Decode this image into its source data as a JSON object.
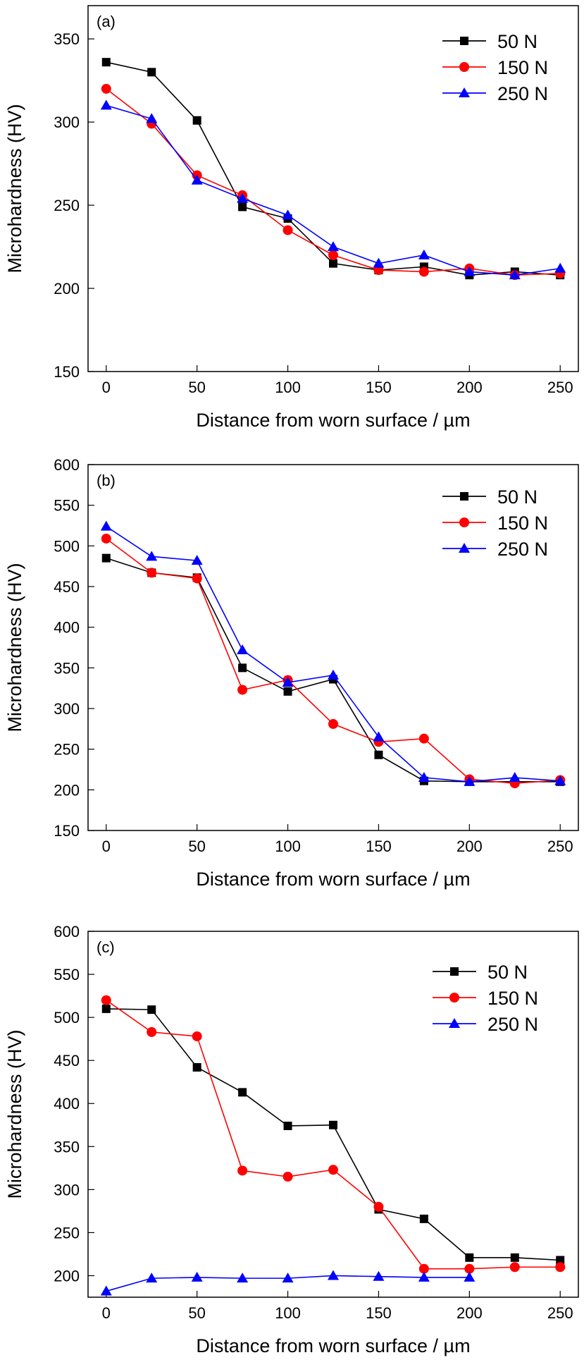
{
  "chart_data": [
    {
      "type": "line",
      "panel_label": "(a)",
      "xlabel": "Distance from worn surface / µm",
      "ylabel": "Microhardness (HV)",
      "xlim": [
        -10,
        260
      ],
      "ylim": [
        150,
        370
      ],
      "xticks": [
        0,
        50,
        100,
        150,
        200,
        250
      ],
      "yticks": [
        150,
        200,
        250,
        300,
        350
      ],
      "grid": false,
      "legend_position": "top-right",
      "series": [
        {
          "name": "50 N",
          "color": "#000000",
          "marker": "square",
          "x": [
            0,
            25,
            50,
            75,
            100,
            125,
            150,
            175,
            200,
            225,
            250
          ],
          "y": [
            336,
            330,
            301,
            249,
            242,
            215,
            211,
            213,
            208,
            210,
            208
          ]
        },
        {
          "name": "150 N",
          "color": "#ff0000",
          "marker": "circle",
          "x": [
            0,
            25,
            50,
            75,
            100,
            125,
            150,
            175,
            200,
            225,
            250
          ],
          "y": [
            320,
            299,
            268,
            256,
            235,
            220,
            211,
            210,
            212,
            208,
            209
          ]
        },
        {
          "name": "250 N",
          "color": "#0000ff",
          "marker": "triangle",
          "x": [
            0,
            25,
            50,
            75,
            100,
            125,
            150,
            175,
            200,
            225,
            250
          ],
          "y": [
            310,
            302,
            265,
            254,
            244,
            225,
            215,
            220,
            210,
            208,
            212
          ]
        }
      ]
    },
    {
      "type": "line",
      "panel_label": "(b)",
      "xlabel": "Distance from worn surface / µm",
      "ylabel": "Microhardness (HV)",
      "xlim": [
        -10,
        260
      ],
      "ylim": [
        150,
        600
      ],
      "xticks": [
        0,
        50,
        100,
        150,
        200,
        250
      ],
      "yticks": [
        150,
        200,
        250,
        300,
        350,
        400,
        450,
        500,
        550,
        600
      ],
      "grid": false,
      "legend_position": "top-right",
      "series": [
        {
          "name": "50 N",
          "color": "#000000",
          "marker": "square",
          "x": [
            0,
            25,
            50,
            75,
            100,
            125,
            150,
            175,
            200,
            225,
            250
          ],
          "y": [
            485,
            467,
            461,
            350,
            321,
            336,
            243,
            211,
            210,
            210,
            210
          ]
        },
        {
          "name": "150 N",
          "color": "#ff0000",
          "marker": "circle",
          "x": [
            0,
            25,
            50,
            75,
            100,
            125,
            150,
            175,
            200,
            225,
            250
          ],
          "y": [
            509,
            467,
            460,
            323,
            335,
            281,
            259,
            263,
            213,
            208,
            212
          ]
        },
        {
          "name": "250 N",
          "color": "#0000ff",
          "marker": "triangle",
          "x": [
            0,
            25,
            50,
            75,
            100,
            125,
            150,
            175,
            200,
            225,
            250
          ],
          "y": [
            524,
            487,
            482,
            372,
            332,
            341,
            265,
            215,
            210,
            215,
            211
          ]
        }
      ]
    },
    {
      "type": "line",
      "panel_label": "(c)",
      "xlabel": "Distance from worn surface / µm",
      "ylabel": "Microhardness (HV)",
      "xlim": [
        -10,
        260
      ],
      "ylim": [
        175,
        600
      ],
      "xticks": [
        0,
        50,
        100,
        150,
        200,
        250
      ],
      "yticks": [
        200,
        250,
        300,
        350,
        400,
        450,
        500,
        550,
        600
      ],
      "grid": false,
      "legend_position": "top-right",
      "series": [
        {
          "name": "50 N",
          "color": "#000000",
          "marker": "square",
          "x": [
            0,
            25,
            50,
            75,
            100,
            125,
            150,
            175,
            200,
            225,
            250
          ],
          "y": [
            510,
            509,
            442,
            413,
            374,
            375,
            277,
            266,
            221,
            221,
            218
          ]
        },
        {
          "name": "150 N",
          "color": "#ff0000",
          "marker": "circle",
          "x": [
            0,
            25,
            50,
            75,
            100,
            125,
            150,
            175,
            200,
            225,
            250
          ],
          "y": [
            520,
            483,
            478,
            322,
            315,
            323,
            280,
            208,
            208,
            210,
            210
          ]
        },
        {
          "name": "250 N",
          "color": "#0000ff",
          "marker": "triangle",
          "x": [
            0,
            25,
            50,
            75,
            100,
            125,
            150,
            175,
            200
          ],
          "y": [
            182,
            197,
            198,
            197,
            197,
            200,
            199,
            198,
            198
          ]
        }
      ]
    }
  ]
}
